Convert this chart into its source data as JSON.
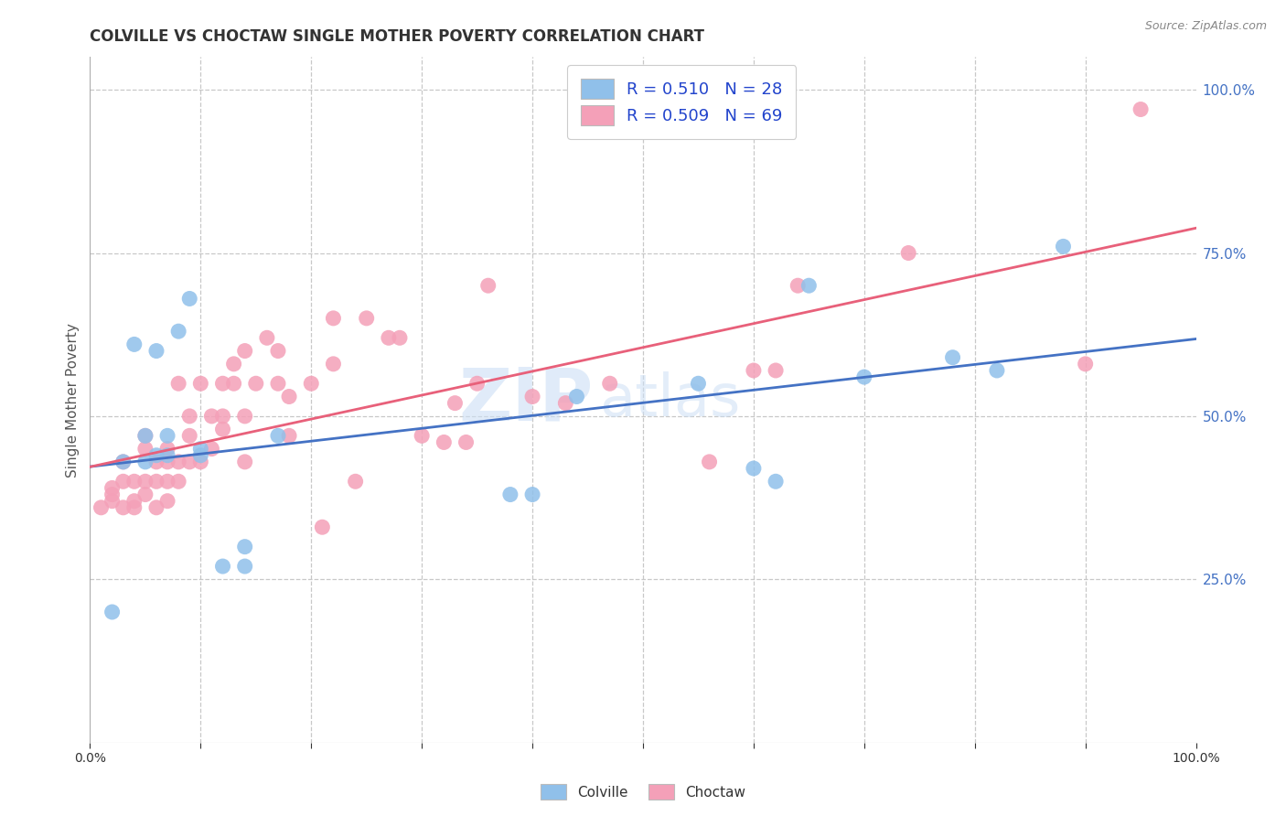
{
  "title": "COLVILLE VS CHOCTAW SINGLE MOTHER POVERTY CORRELATION CHART",
  "source": "Source: ZipAtlas.com",
  "ylabel": "Single Mother Poverty",
  "xlim": [
    0,
    1
  ],
  "ylim": [
    0,
    1.05
  ],
  "colville_color": "#90C0EA",
  "choctaw_color": "#F4A0B8",
  "colville_line_color": "#4472C4",
  "choctaw_line_color": "#E8607A",
  "legend_R_colville": "R = 0.510",
  "legend_N_colville": "N = 28",
  "legend_R_choctaw": "R = 0.509",
  "legend_N_choctaw": "N = 69",
  "watermark_zip": "ZIP",
  "watermark_atlas": "atlas",
  "background_color": "#ffffff",
  "grid_color": "#c8c8c8",
  "colville_x": [
    0.02,
    0.03,
    0.04,
    0.05,
    0.05,
    0.06,
    0.06,
    0.07,
    0.07,
    0.08,
    0.09,
    0.1,
    0.1,
    0.12,
    0.14,
    0.14,
    0.17,
    0.38,
    0.4,
    0.44,
    0.55,
    0.6,
    0.62,
    0.65,
    0.7,
    0.78,
    0.82,
    0.88
  ],
  "colville_y": [
    0.2,
    0.43,
    0.61,
    0.43,
    0.47,
    0.44,
    0.6,
    0.44,
    0.47,
    0.63,
    0.68,
    0.44,
    0.45,
    0.27,
    0.3,
    0.27,
    0.47,
    0.38,
    0.38,
    0.53,
    0.55,
    0.42,
    0.4,
    0.7,
    0.56,
    0.59,
    0.57,
    0.76
  ],
  "choctaw_x": [
    0.01,
    0.02,
    0.02,
    0.02,
    0.03,
    0.03,
    0.03,
    0.04,
    0.04,
    0.04,
    0.05,
    0.05,
    0.05,
    0.05,
    0.06,
    0.06,
    0.06,
    0.07,
    0.07,
    0.07,
    0.07,
    0.08,
    0.08,
    0.08,
    0.09,
    0.09,
    0.09,
    0.1,
    0.1,
    0.11,
    0.11,
    0.12,
    0.12,
    0.12,
    0.13,
    0.13,
    0.14,
    0.14,
    0.14,
    0.15,
    0.16,
    0.17,
    0.17,
    0.18,
    0.18,
    0.2,
    0.21,
    0.22,
    0.22,
    0.24,
    0.25,
    0.27,
    0.28,
    0.3,
    0.32,
    0.33,
    0.34,
    0.35,
    0.36,
    0.4,
    0.43,
    0.47,
    0.56,
    0.6,
    0.62,
    0.64,
    0.74,
    0.9,
    0.95
  ],
  "choctaw_y": [
    0.36,
    0.37,
    0.38,
    0.39,
    0.36,
    0.4,
    0.43,
    0.36,
    0.37,
    0.4,
    0.38,
    0.4,
    0.45,
    0.47,
    0.36,
    0.4,
    0.43,
    0.37,
    0.4,
    0.43,
    0.45,
    0.4,
    0.43,
    0.55,
    0.43,
    0.47,
    0.5,
    0.43,
    0.55,
    0.45,
    0.5,
    0.48,
    0.5,
    0.55,
    0.55,
    0.58,
    0.43,
    0.5,
    0.6,
    0.55,
    0.62,
    0.55,
    0.6,
    0.47,
    0.53,
    0.55,
    0.33,
    0.58,
    0.65,
    0.4,
    0.65,
    0.62,
    0.62,
    0.47,
    0.46,
    0.52,
    0.46,
    0.55,
    0.7,
    0.53,
    0.52,
    0.55,
    0.43,
    0.57,
    0.57,
    0.7,
    0.75,
    0.58,
    0.97
  ],
  "title_fontsize": 12,
  "axis_label_fontsize": 11,
  "tick_fontsize": 10,
  "legend_fontsize": 13,
  "right_ytick_color": "#4472C4",
  "right_ytick_fontsize": 11
}
